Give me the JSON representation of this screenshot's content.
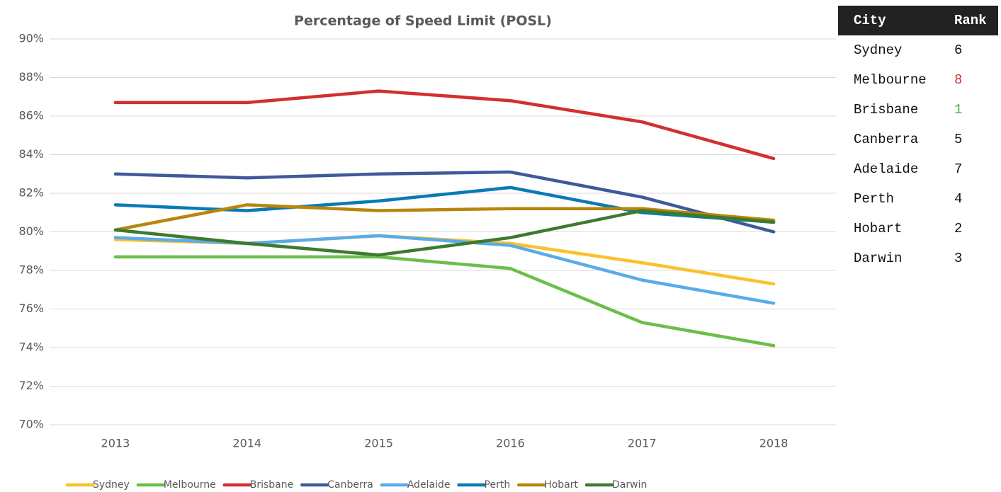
{
  "chart_data": {
    "type": "line",
    "title": "Percentage of Speed Limit (POSL)",
    "categories": [
      "2013",
      "2014",
      "2015",
      "2016",
      "2017",
      "2018"
    ],
    "ylim": [
      70,
      90
    ],
    "yticks": [
      {
        "value": 70,
        "label": "70%"
      },
      {
        "value": 72,
        "label": "72%"
      },
      {
        "value": 74,
        "label": "74%"
      },
      {
        "value": 76,
        "label": "76%"
      },
      {
        "value": 78,
        "label": "78%"
      },
      {
        "value": 80,
        "label": "80%"
      },
      {
        "value": 82,
        "label": "82%"
      },
      {
        "value": 84,
        "label": "84%"
      },
      {
        "value": 86,
        "label": "86%"
      },
      {
        "value": 88,
        "label": "88%"
      },
      {
        "value": 90,
        "label": "90%"
      }
    ],
    "grid": true,
    "legend": "bottom",
    "series": [
      {
        "name": "Sydney",
        "color": "#fbc02d",
        "values": [
          79.6,
          79.4,
          79.8,
          79.4,
          78.4,
          77.3
        ]
      },
      {
        "name": "Melbourne",
        "color": "#6abf4b",
        "values": [
          78.7,
          78.7,
          78.7,
          78.1,
          75.3,
          74.1
        ]
      },
      {
        "name": "Brisbane",
        "color": "#d32f2f",
        "values": [
          86.7,
          86.7,
          87.3,
          86.8,
          85.7,
          83.8
        ]
      },
      {
        "name": "Canberra",
        "color": "#3f5a9a",
        "values": [
          83.0,
          82.8,
          83.0,
          83.1,
          81.8,
          80.0
        ]
      },
      {
        "name": "Adelaide",
        "color": "#5aabe8",
        "values": [
          79.7,
          79.4,
          79.8,
          79.3,
          77.5,
          76.3
        ]
      },
      {
        "name": "Perth",
        "color": "#0a7ab5",
        "values": [
          81.4,
          81.1,
          81.6,
          82.3,
          81.0,
          80.5
        ]
      },
      {
        "name": "Hobart",
        "color": "#b8860b",
        "values": [
          80.1,
          81.4,
          81.1,
          81.2,
          81.2,
          80.6
        ]
      },
      {
        "name": "Darwin",
        "color": "#3d7a2e",
        "values": [
          80.1,
          79.4,
          78.8,
          79.7,
          81.1,
          80.5
        ]
      }
    ]
  },
  "table": {
    "header": [
      "City",
      "Rank"
    ],
    "rows": [
      [
        "Sydney",
        "6"
      ],
      [
        "Melbourne",
        "8"
      ],
      [
        "Brisbane",
        "1"
      ],
      [
        "Canberra",
        "5"
      ],
      [
        "Adelaide",
        "7"
      ],
      [
        "Perth",
        "4"
      ],
      [
        "Hobart",
        "2"
      ],
      [
        "Darwin",
        "3"
      ]
    ]
  }
}
